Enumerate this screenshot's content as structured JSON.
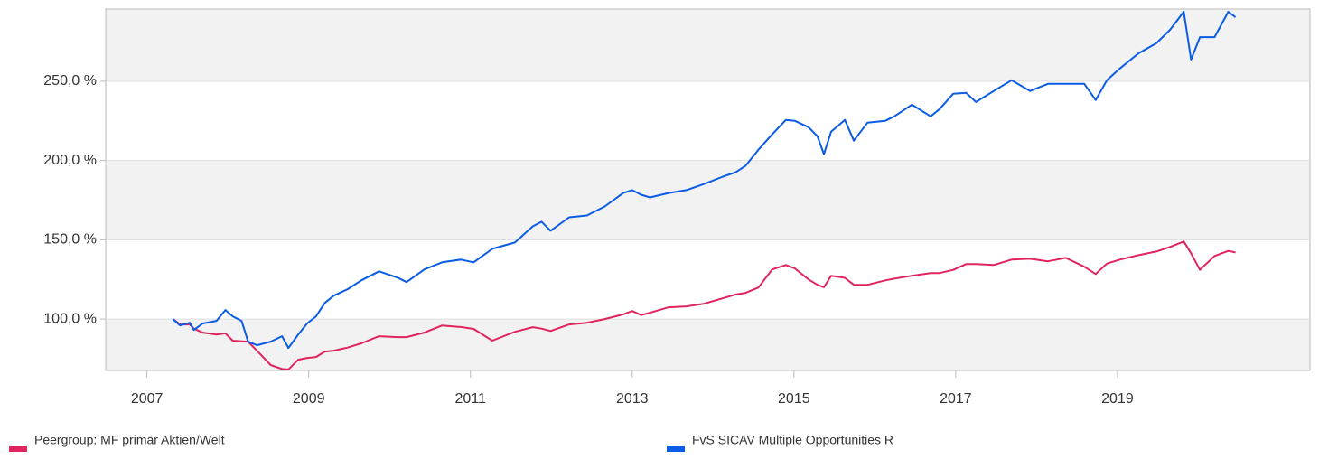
{
  "chart_data": {
    "type": "line",
    "x": [
      2007.32,
      2007.41,
      2007.53,
      2007.58,
      2007.69,
      2007.86,
      2007.97,
      2008.06,
      2008.17,
      2008.25,
      2008.36,
      2008.53,
      2008.67,
      2008.75,
      2008.87,
      2008.98,
      2009.09,
      2009.2,
      2009.31,
      2009.48,
      2009.65,
      2009.87,
      2010.1,
      2010.21,
      2010.43,
      2010.65,
      2010.88,
      2011.04,
      2011.27,
      2011.55,
      2011.77,
      2011.88,
      2011.99,
      2012.22,
      2012.44,
      2012.66,
      2012.89,
      2013.0,
      2013.11,
      2013.22,
      2013.45,
      2013.67,
      2013.89,
      2014.12,
      2014.28,
      2014.4,
      2014.56,
      2014.73,
      2014.9,
      2015.01,
      2015.18,
      2015.29,
      2015.37,
      2015.46,
      2015.63,
      2015.74,
      2015.91,
      2016.13,
      2016.24,
      2016.46,
      2016.69,
      2016.8,
      2016.97,
      2017.13,
      2017.25,
      2017.47,
      2017.69,
      2017.92,
      2018.14,
      2018.36,
      2018.59,
      2018.73,
      2018.87,
      2019.03,
      2019.26,
      2019.48,
      2019.65,
      2019.82,
      2019.91,
      2020.02,
      2020.2,
      2020.37,
      2020.46
    ],
    "series": [
      {
        "name": "Peergroup: MF primär Aktien/Welt",
        "color": "#e0245e",
        "values": [
          100,
          96.6,
          96.6,
          94.0,
          91.5,
          90.3,
          91.0,
          86.4,
          86.0,
          85.8,
          80.1,
          71.0,
          68.5,
          68.2,
          74.4,
          75.5,
          76.1,
          79.5,
          80.1,
          82.0,
          84.7,
          89.2,
          88.6,
          88.6,
          91.5,
          96.0,
          95.0,
          93.8,
          86.4,
          92.0,
          94.9,
          94.0,
          92.5,
          96.6,
          97.7,
          100.0,
          103.0,
          105.1,
          102.5,
          104.0,
          107.4,
          108.0,
          109.7,
          113.1,
          115.5,
          116.5,
          119.9,
          131.3,
          134.1,
          132.0,
          125.0,
          121.6,
          120.0,
          127.3,
          126.0,
          121.6,
          121.6,
          124.4,
          125.5,
          127.3,
          129.0,
          129.0,
          131.0,
          134.7,
          134.7,
          134.1,
          137.5,
          138.0,
          136.4,
          138.6,
          133.0,
          128.4,
          135.0,
          137.5,
          140.3,
          142.6,
          145.5,
          148.9,
          141.5,
          131.0,
          139.8,
          143.0,
          142.0
        ]
      },
      {
        "name": "FvS SICAV Multiple Opportunities R",
        "color": "#0a5ce6",
        "values": [
          100,
          96.0,
          97.7,
          93.2,
          97.2,
          98.9,
          105.7,
          101.7,
          98.9,
          85.8,
          83.5,
          85.8,
          89.2,
          81.8,
          90.3,
          97.2,
          101.7,
          110.2,
          114.8,
          118.8,
          124.4,
          130.1,
          126.1,
          123.3,
          131.3,
          135.8,
          137.5,
          135.8,
          144.3,
          148.3,
          158.5,
          161.4,
          155.7,
          164.2,
          165.3,
          171.0,
          179.5,
          181.3,
          178.4,
          176.7,
          179.5,
          181.3,
          185.2,
          189.8,
          192.6,
          196.6,
          206.8,
          216.5,
          225.6,
          225.0,
          221.0,
          215.3,
          204.0,
          218.2,
          225.6,
          212.5,
          223.9,
          225.0,
          227.8,
          235.2,
          227.8,
          232.4,
          242.1,
          242.6,
          236.9,
          243.8,
          250.6,
          243.8,
          248.3,
          248.3,
          248.3,
          238.1,
          250.6,
          258.0,
          267.6,
          273.9,
          282.4,
          293.8,
          263.6,
          277.8,
          277.8,
          293.8,
          290.3
        ]
      }
    ],
    "xlim": [
      2006.49,
      2021.38
    ],
    "xticks": [
      2007,
      2009,
      2011,
      2013,
      2015,
      2017,
      2019
    ],
    "ylim": [
      67.6,
      295.5
    ],
    "yticks": [
      {
        "value": 100,
        "label": "100,0 %"
      },
      {
        "value": 150,
        "label": "150,0 %"
      },
      {
        "value": 200,
        "label": "200,0 %"
      },
      {
        "value": 250,
        "label": "250,0 %"
      }
    ],
    "grid": true
  }
}
